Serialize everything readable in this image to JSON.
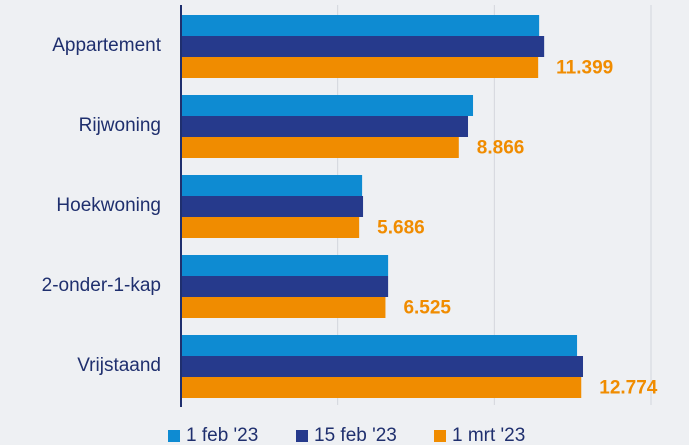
{
  "chart_data": {
    "type": "barh",
    "categories": [
      "Appartement",
      "Rijwoning",
      "Hoekwoning",
      "2-onder-1-kap",
      "Vrijstaand"
    ],
    "series": [
      {
        "name": "1 feb '23",
        "color": "#0e8bd2",
        "values": [
          11430,
          9320,
          5780,
          6610,
          12640
        ]
      },
      {
        "name": "15 feb '23",
        "color": "#263a8c",
        "values": [
          11590,
          9160,
          5810,
          6610,
          12830
        ]
      },
      {
        "name": "1 mrt '23",
        "color": "#f08c00",
        "values": [
          11399,
          8866,
          5686,
          6525,
          12774
        ],
        "value_labels": [
          "11.399",
          "8.866",
          "5.686",
          "6.525",
          "12.774"
        ]
      }
    ],
    "xlim": [
      0,
      15000
    ],
    "xticks": [
      0,
      5000,
      10000,
      15000
    ],
    "grid": true
  }
}
